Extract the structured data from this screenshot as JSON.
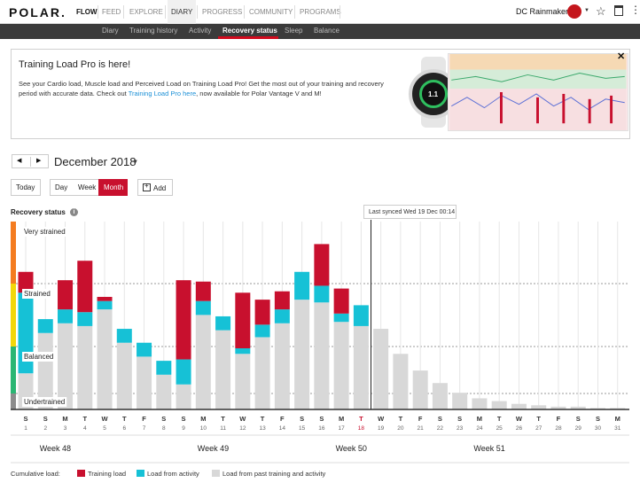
{
  "topnav": {
    "logo": "POLAR.",
    "product": "FLOW",
    "tabs": [
      "FEED",
      "EXPLORE",
      "DIARY",
      "PROGRESS",
      "COMMUNITY",
      "PROGRAMS"
    ],
    "active_tab": "DIARY",
    "user_name": "DC Rainmaker",
    "star_icon": "star-icon",
    "ext_icon": "extension-icon",
    "more_icon": "more-vertical-icon"
  },
  "subnav": {
    "tabs": [
      "Diary",
      "Training history",
      "Activity",
      "Recovery status",
      "Sleep",
      "Balance"
    ],
    "active_tab": "Recovery status"
  },
  "banner": {
    "title": "Training Load Pro is here!",
    "text_before": "See your Cardio load, Muscle load and Perceived Load on Training Load Pro! Get the most out of your training and recovery period with accurate data. Check out ",
    "link_text": "Training Load Pro here",
    "text_after": ", now available for Polar Vantage V and M!",
    "watch_value": "1.1"
  },
  "date_controls": {
    "prev_icon": "chevron-left-icon",
    "next_icon": "chevron-right-icon",
    "month": "December 2018",
    "today": "Today",
    "views": [
      "Day",
      "Week",
      "Month"
    ],
    "active_view": "Month",
    "add": "Add"
  },
  "recovery": {
    "title": "Recovery status",
    "sync_label": "Last synced Wed 19 Dec 00:14",
    "colors": {
      "training": "#c8102e",
      "activity": "#16c1d6",
      "past": "#d8d8d8",
      "highlight_day": "#c8102e"
    }
  },
  "chart_data": {
    "type": "bar",
    "zones": [
      "Very strained",
      "Strained",
      "Balanced",
      "Undertrained"
    ],
    "zone_colors": [
      "#f47c20",
      "#f2d70a",
      "#2ab673",
      "#8c8c8c"
    ],
    "days": [
      {
        "wd": "S",
        "d": "1"
      },
      {
        "wd": "S",
        "d": "2"
      },
      {
        "wd": "M",
        "d": "3"
      },
      {
        "wd": "T",
        "d": "4"
      },
      {
        "wd": "W",
        "d": "5"
      },
      {
        "wd": "T",
        "d": "6"
      },
      {
        "wd": "F",
        "d": "7"
      },
      {
        "wd": "S",
        "d": "8"
      },
      {
        "wd": "S",
        "d": "9"
      },
      {
        "wd": "M",
        "d": "10"
      },
      {
        "wd": "T",
        "d": "11"
      },
      {
        "wd": "W",
        "d": "12"
      },
      {
        "wd": "T",
        "d": "13"
      },
      {
        "wd": "F",
        "d": "14"
      },
      {
        "wd": "S",
        "d": "15"
      },
      {
        "wd": "S",
        "d": "16"
      },
      {
        "wd": "M",
        "d": "17"
      },
      {
        "wd": "T",
        "d": "18"
      },
      {
        "wd": "W",
        "d": "19"
      },
      {
        "wd": "T",
        "d": "20"
      },
      {
        "wd": "F",
        "d": "21"
      },
      {
        "wd": "S",
        "d": "22"
      },
      {
        "wd": "S",
        "d": "23"
      },
      {
        "wd": "M",
        "d": "24"
      },
      {
        "wd": "T",
        "d": "25"
      },
      {
        "wd": "W",
        "d": "26"
      },
      {
        "wd": "T",
        "d": "27"
      },
      {
        "wd": "F",
        "d": "28"
      },
      {
        "wd": "S",
        "d": "29"
      },
      {
        "wd": "S",
        "d": "30"
      },
      {
        "wd": "M",
        "d": "31"
      }
    ],
    "highlight_day_index": 17,
    "series": [
      {
        "name": "Load from past training and activity",
        "values": [
          0.26,
          0.55,
          0.62,
          0.6,
          0.72,
          0.48,
          0.38,
          0.25,
          0.18,
          0.68,
          0.57,
          0.4,
          0.52,
          0.62,
          0.79,
          0.77,
          0.63,
          0.6,
          0.58,
          0.4,
          0.28,
          0.19,
          0.12,
          0.08,
          0.06,
          0.04,
          0.03,
          0.02,
          0.02,
          0.01,
          0.01
        ]
      },
      {
        "name": "Load from activity",
        "values": [
          0.58,
          0.1,
          0.1,
          0.1,
          0.06,
          0.1,
          0.1,
          0.1,
          0.18,
          0.1,
          0.1,
          0.04,
          0.09,
          0.1,
          0.2,
          0.12,
          0.06,
          0.15,
          0,
          0,
          0,
          0,
          0,
          0,
          0,
          0,
          0,
          0,
          0,
          0,
          0
        ]
      },
      {
        "name": "Training load",
        "values": [
          0.15,
          0.0,
          0.21,
          0.37,
          0.03,
          0,
          0,
          0,
          0.57,
          0.14,
          0,
          0.4,
          0.18,
          0.13,
          0,
          0.3,
          0.18,
          0,
          0,
          0,
          0,
          0,
          0,
          0,
          0,
          0,
          0,
          0,
          0,
          0,
          0
        ]
      }
    ],
    "weeks": [
      {
        "label": "Week 48",
        "day_index": 1.5
      },
      {
        "label": "Week 49",
        "day_index": 9.5
      },
      {
        "label": "Week 50",
        "day_index": 16.5
      },
      {
        "label": "Week 51",
        "day_index": 23.5
      }
    ],
    "synced_after_day_index": 17,
    "ylim": [
      0,
      1
    ]
  },
  "legend": {
    "title": "Cumulative load:",
    "training": "Training load",
    "activity": "Load from activity",
    "past": "Load from past training and activity"
  }
}
